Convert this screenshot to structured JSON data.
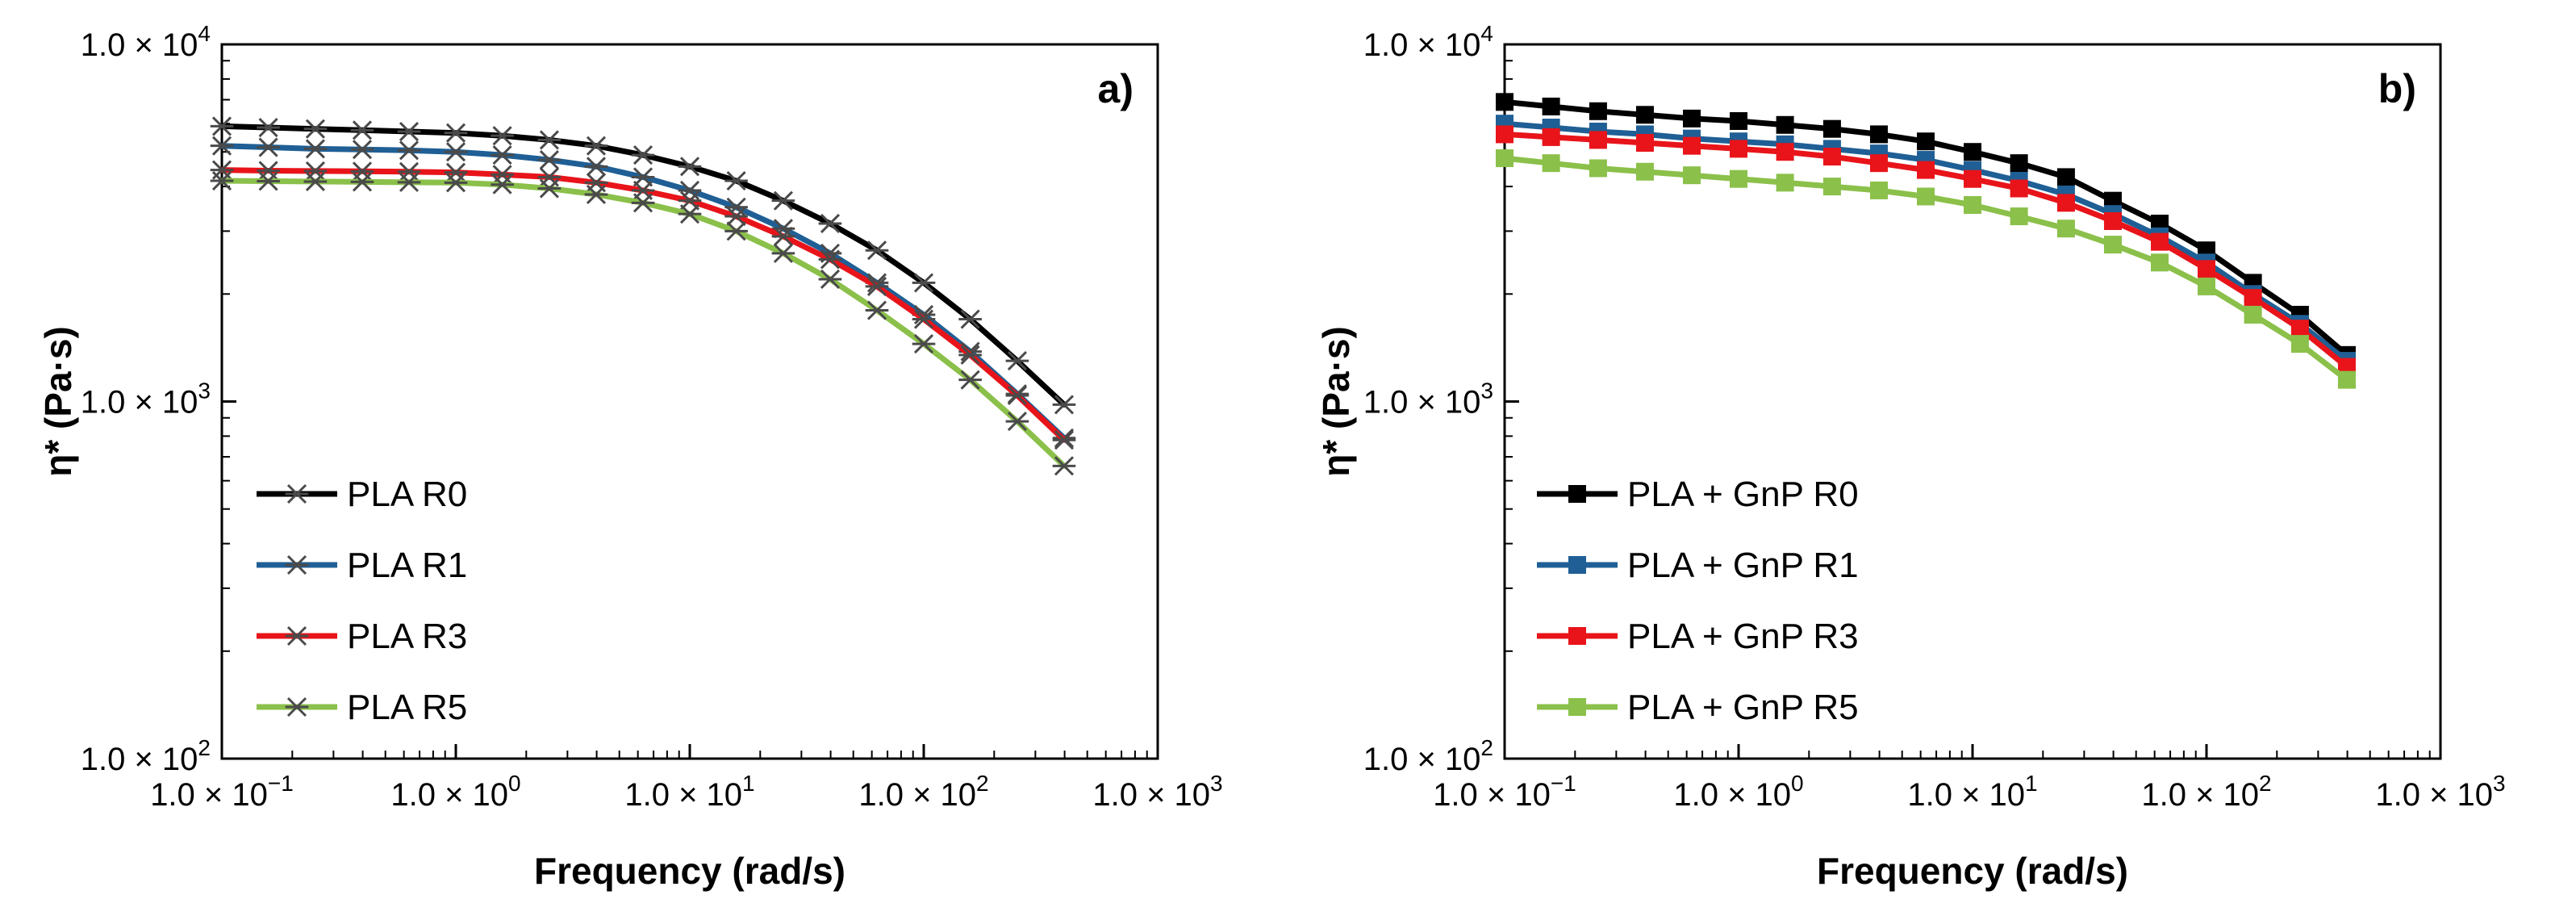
{
  "chart_data": [
    {
      "type": "line",
      "panel_label": "a)",
      "xlabel": "Frequency (rad/s)",
      "ylabel": "η* (Pa·s)",
      "xscale": "log",
      "yscale": "log",
      "xlim": [
        0.1,
        1000
      ],
      "ylim": [
        100,
        10000
      ],
      "grid": false,
      "legend_position": "bottom-left",
      "marker": "asterisk",
      "x_ticks": [
        {
          "value": 0.1,
          "mantissa": "1.0 × 10",
          "exp": "−1"
        },
        {
          "value": 1,
          "mantissa": "1.0 × 10",
          "exp": "0"
        },
        {
          "value": 10,
          "mantissa": "1.0 × 10",
          "exp": "1"
        },
        {
          "value": 100,
          "mantissa": "1.0 × 10",
          "exp": "2"
        },
        {
          "value": 1000,
          "mantissa": "1.0 × 10",
          "exp": "3"
        }
      ],
      "y_ticks": [
        {
          "value": 100,
          "mantissa": "1.0 × 10",
          "exp": "2"
        },
        {
          "value": 1000,
          "mantissa": "1.0 × 10",
          "exp": "3"
        },
        {
          "value": 10000,
          "mantissa": "1.0 × 10",
          "exp": "4"
        }
      ],
      "x": [
        0.1,
        0.158,
        0.251,
        0.398,
        0.631,
        1.0,
        1.58,
        2.51,
        3.98,
        6.31,
        10.0,
        15.8,
        25.1,
        39.8,
        63.1,
        100,
        158,
        251,
        398
      ],
      "series": [
        {
          "name": "PLA R0",
          "color": "#000000",
          "values": [
            5900,
            5850,
            5800,
            5750,
            5700,
            5650,
            5550,
            5400,
            5200,
            4900,
            4550,
            4150,
            3650,
            3150,
            2650,
            2150,
            1700,
            1300,
            980
          ]
        },
        {
          "name": "PLA R1",
          "color": "#1f5f95",
          "values": [
            5200,
            5150,
            5100,
            5080,
            5050,
            5000,
            4900,
            4750,
            4550,
            4250,
            3900,
            3500,
            3050,
            2600,
            2150,
            1750,
            1380,
            1050,
            790
          ]
        },
        {
          "name": "PLA R3",
          "color": "#e8141a",
          "values": [
            4450,
            4430,
            4420,
            4410,
            4400,
            4380,
            4320,
            4250,
            4100,
            3900,
            3650,
            3300,
            2900,
            2500,
            2100,
            1700,
            1350,
            1040,
            780
          ]
        },
        {
          "name": "PLA R5",
          "color": "#8bc04a",
          "values": [
            4150,
            4140,
            4130,
            4120,
            4110,
            4100,
            4050,
            3950,
            3800,
            3600,
            3350,
            3000,
            2600,
            2200,
            1800,
            1450,
            1150,
            880,
            660
          ]
        }
      ]
    },
    {
      "type": "line",
      "panel_label": "b)",
      "xlabel": "Frequency (rad/s)",
      "ylabel": "η* (Pa·s)",
      "xscale": "log",
      "yscale": "log",
      "xlim": [
        0.1,
        1000
      ],
      "ylim": [
        100,
        10000
      ],
      "grid": false,
      "legend_position": "bottom-left",
      "marker": "square",
      "x_ticks": [
        {
          "value": 0.1,
          "mantissa": "1.0 × 10",
          "exp": "−1"
        },
        {
          "value": 1,
          "mantissa": "1.0 × 10",
          "exp": "0"
        },
        {
          "value": 10,
          "mantissa": "1.0 × 10",
          "exp": "1"
        },
        {
          "value": 100,
          "mantissa": "1.0 × 10",
          "exp": "2"
        },
        {
          "value": 1000,
          "mantissa": "1.0 × 10",
          "exp": "3"
        }
      ],
      "y_ticks": [
        {
          "value": 100,
          "mantissa": "1.0 × 10",
          "exp": "2"
        },
        {
          "value": 1000,
          "mantissa": "1.0 × 10",
          "exp": "3"
        },
        {
          "value": 10000,
          "mantissa": "1.0 × 10",
          "exp": "4"
        }
      ],
      "x": [
        0.1,
        0.158,
        0.251,
        0.398,
        0.631,
        1.0,
        1.58,
        2.51,
        3.98,
        6.31,
        10.0,
        15.8,
        25.1,
        39.8,
        63.1,
        100,
        158,
        251,
        398
      ],
      "series": [
        {
          "name": "PLA + GnP R0",
          "color": "#000000",
          "values": [
            6900,
            6700,
            6500,
            6350,
            6200,
            6100,
            5950,
            5800,
            5600,
            5350,
            5000,
            4650,
            4250,
            3650,
            3150,
            2650,
            2150,
            1750,
            1350
          ]
        },
        {
          "name": "PLA + GnP R1",
          "color": "#1f5f95",
          "values": [
            6000,
            5850,
            5700,
            5600,
            5450,
            5350,
            5250,
            5100,
            4950,
            4750,
            4450,
            4150,
            3800,
            3350,
            2900,
            2450,
            2000,
            1650,
            1300
          ]
        },
        {
          "name": "PLA + GnP R3",
          "color": "#e8141a",
          "values": [
            5600,
            5500,
            5400,
            5300,
            5200,
            5100,
            5000,
            4850,
            4650,
            4450,
            4200,
            3950,
            3600,
            3200,
            2800,
            2350,
            1950,
            1600,
            1250
          ]
        },
        {
          "name": "PLA + GnP R5",
          "color": "#8bc04a",
          "values": [
            4800,
            4650,
            4500,
            4400,
            4300,
            4200,
            4100,
            4000,
            3900,
            3750,
            3550,
            3300,
            3050,
            2750,
            2450,
            2100,
            1750,
            1450,
            1150
          ]
        }
      ]
    }
  ]
}
